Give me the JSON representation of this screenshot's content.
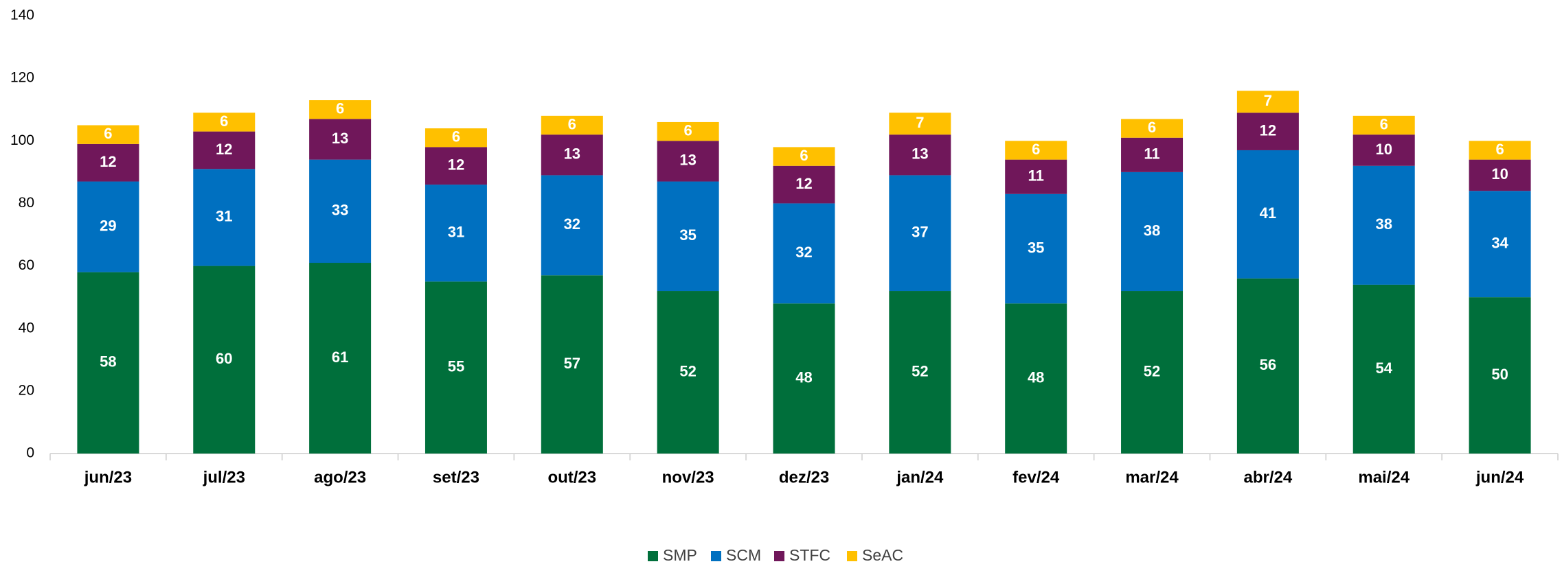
{
  "chart_data": {
    "type": "stacked_bar",
    "categories": [
      "jun/23",
      "jul/23",
      "ago/23",
      "set/23",
      "out/23",
      "nov/23",
      "dez/23",
      "jan/24",
      "fev/24",
      "mar/24",
      "abr/24",
      "mai/24",
      "jun/24"
    ],
    "series": [
      {
        "name": "SMP",
        "color": "#006f3b",
        "values": [
          58,
          60,
          61,
          55,
          57,
          52,
          48,
          52,
          48,
          52,
          56,
          54,
          50
        ]
      },
      {
        "name": "SCM",
        "color": "#0070c0",
        "values": [
          29,
          31,
          33,
          31,
          32,
          35,
          32,
          37,
          35,
          38,
          41,
          38,
          34
        ]
      },
      {
        "name": "STFC",
        "color": "#70175a",
        "values": [
          12,
          12,
          13,
          12,
          13,
          13,
          12,
          13,
          11,
          11,
          12,
          10,
          10
        ]
      },
      {
        "name": "SeAC",
        "color": "#ffc000",
        "values": [
          6,
          6,
          6,
          6,
          6,
          6,
          6,
          7,
          6,
          6,
          7,
          6,
          6
        ]
      }
    ],
    "ylim": [
      0,
      140
    ],
    "yticks": [
      0,
      20,
      40,
      60,
      80,
      100,
      120,
      140
    ],
    "grid": false,
    "legend": "bottom"
  }
}
